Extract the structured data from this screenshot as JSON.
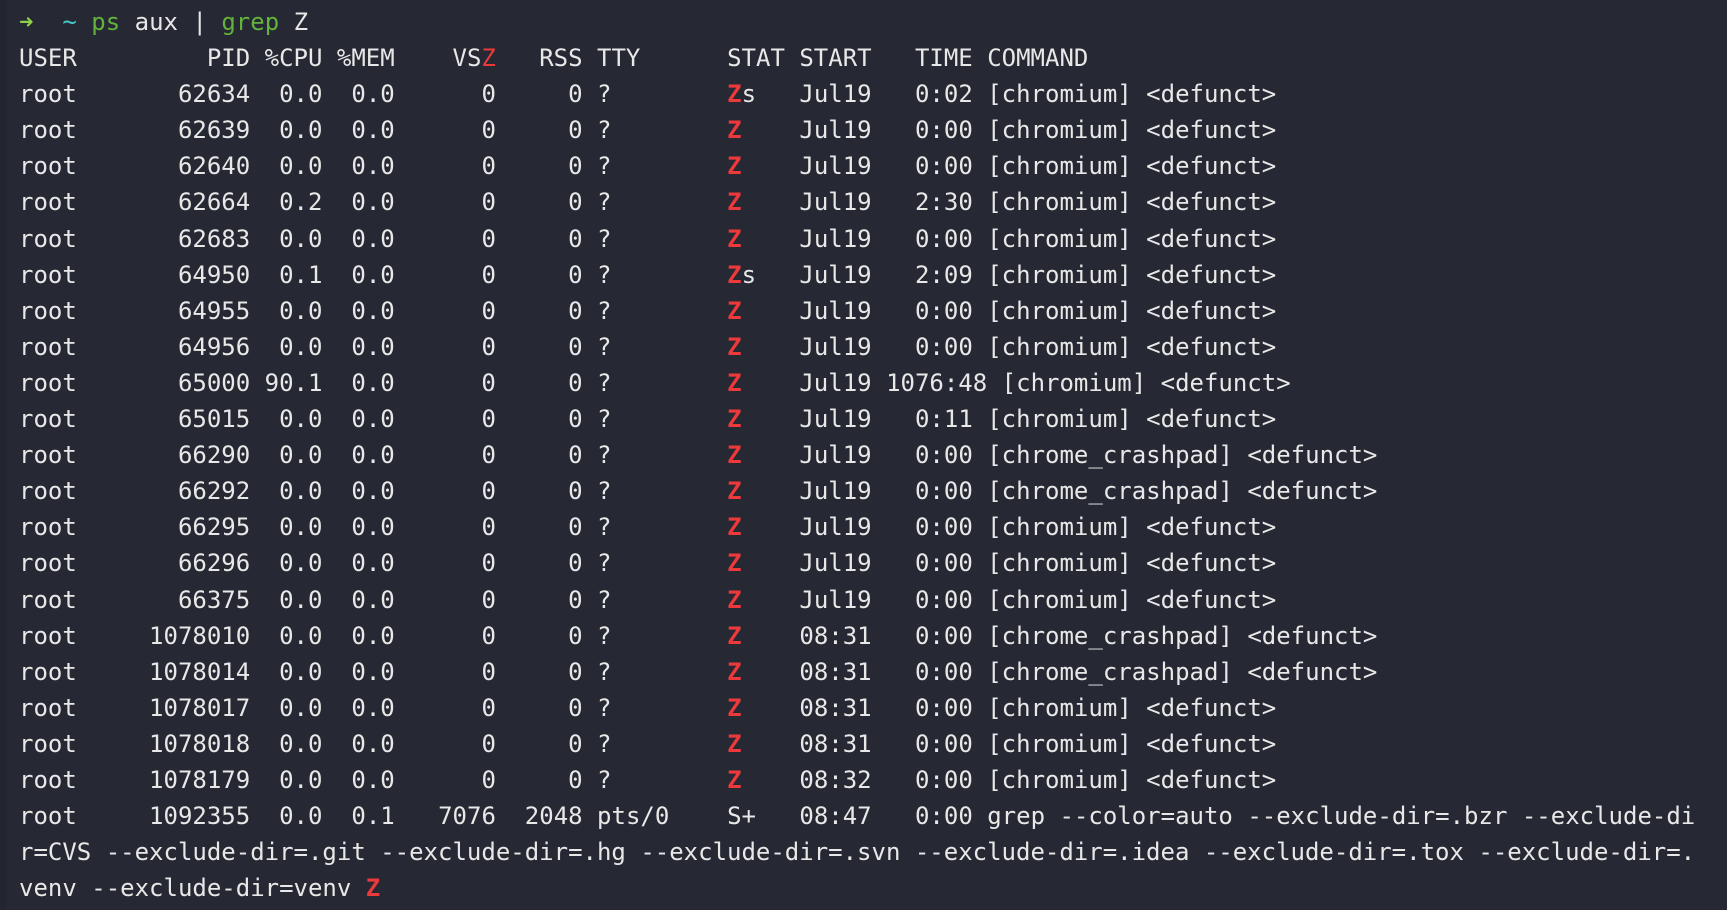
{
  "prompt": {
    "arrow": "➜",
    "cwd": "~",
    "cmd1": "ps",
    "arg1": "aux",
    "pipe": "|",
    "cmd2": "grep",
    "arg2": "Z"
  },
  "colors": {
    "background": "#262833",
    "text": "#e8e8e8",
    "match": "#ec3a3c",
    "prompt_arrow": "#8fd04a",
    "cwd": "#45c8cc",
    "command": "#62b23c"
  },
  "header": [
    "USER",
    "PID",
    "%CPU",
    "%MEM",
    "VSZ",
    "RSS",
    "TTY",
    "STAT",
    "START",
    "TIME",
    "COMMAND"
  ],
  "rows": [
    [
      "root",
      "62634",
      "0.0",
      "0.0",
      "0",
      "0",
      "?",
      "Zs",
      "Jul19",
      "0:02",
      "[chromium] <defunct>"
    ],
    [
      "root",
      "62639",
      "0.0",
      "0.0",
      "0",
      "0",
      "?",
      "Z",
      "Jul19",
      "0:00",
      "[chromium] <defunct>"
    ],
    [
      "root",
      "62640",
      "0.0",
      "0.0",
      "0",
      "0",
      "?",
      "Z",
      "Jul19",
      "0:00",
      "[chromium] <defunct>"
    ],
    [
      "root",
      "62664",
      "0.2",
      "0.0",
      "0",
      "0",
      "?",
      "Z",
      "Jul19",
      "2:30",
      "[chromium] <defunct>"
    ],
    [
      "root",
      "62683",
      "0.0",
      "0.0",
      "0",
      "0",
      "?",
      "Z",
      "Jul19",
      "0:00",
      "[chromium] <defunct>"
    ],
    [
      "root",
      "64950",
      "0.1",
      "0.0",
      "0",
      "0",
      "?",
      "Zs",
      "Jul19",
      "2:09",
      "[chromium] <defunct>"
    ],
    [
      "root",
      "64955",
      "0.0",
      "0.0",
      "0",
      "0",
      "?",
      "Z",
      "Jul19",
      "0:00",
      "[chromium] <defunct>"
    ],
    [
      "root",
      "64956",
      "0.0",
      "0.0",
      "0",
      "0",
      "?",
      "Z",
      "Jul19",
      "0:00",
      "[chromium] <defunct>"
    ],
    [
      "root",
      "65000",
      "90.1",
      "0.0",
      "0",
      "0",
      "?",
      "Z",
      "Jul19",
      "1076:48",
      "[chromium] <defunct>"
    ],
    [
      "root",
      "65015",
      "0.0",
      "0.0",
      "0",
      "0",
      "?",
      "Z",
      "Jul19",
      "0:11",
      "[chromium] <defunct>"
    ],
    [
      "root",
      "66290",
      "0.0",
      "0.0",
      "0",
      "0",
      "?",
      "Z",
      "Jul19",
      "0:00",
      "[chrome_crashpad] <defunct>"
    ],
    [
      "root",
      "66292",
      "0.0",
      "0.0",
      "0",
      "0",
      "?",
      "Z",
      "Jul19",
      "0:00",
      "[chrome_crashpad] <defunct>"
    ],
    [
      "root",
      "66295",
      "0.0",
      "0.0",
      "0",
      "0",
      "?",
      "Z",
      "Jul19",
      "0:00",
      "[chromium] <defunct>"
    ],
    [
      "root",
      "66296",
      "0.0",
      "0.0",
      "0",
      "0",
      "?",
      "Z",
      "Jul19",
      "0:00",
      "[chromium] <defunct>"
    ],
    [
      "root",
      "66375",
      "0.0",
      "0.0",
      "0",
      "0",
      "?",
      "Z",
      "Jul19",
      "0:00",
      "[chromium] <defunct>"
    ],
    [
      "root",
      "1078010",
      "0.0",
      "0.0",
      "0",
      "0",
      "?",
      "Z",
      "08:31",
      "0:00",
      "[chrome_crashpad] <defunct>"
    ],
    [
      "root",
      "1078014",
      "0.0",
      "0.0",
      "0",
      "0",
      "?",
      "Z",
      "08:31",
      "0:00",
      "[chrome_crashpad] <defunct>"
    ],
    [
      "root",
      "1078017",
      "0.0",
      "0.0",
      "0",
      "0",
      "?",
      "Z",
      "08:31",
      "0:00",
      "[chromium] <defunct>"
    ],
    [
      "root",
      "1078018",
      "0.0",
      "0.0",
      "0",
      "0",
      "?",
      "Z",
      "08:31",
      "0:00",
      "[chromium] <defunct>"
    ],
    [
      "root",
      "1078179",
      "0.0",
      "0.0",
      "0",
      "0",
      "?",
      "Z",
      "08:32",
      "0:00",
      "[chromium] <defunct>"
    ],
    [
      "root",
      "1092355",
      "0.0",
      "0.1",
      "7076",
      "2048",
      "pts/0",
      "S+",
      "08:47",
      "0:00",
      "grep --color=auto --exclude-dir=.bzr --exclude-dir=CVS --exclude-dir=.git --exclude-dir=.hg --exclude-dir=.svn --exclude-dir=.idea --exclude-dir=.tox --exclude-dir=.venv --exclude-dir=venv Z"
    ]
  ]
}
